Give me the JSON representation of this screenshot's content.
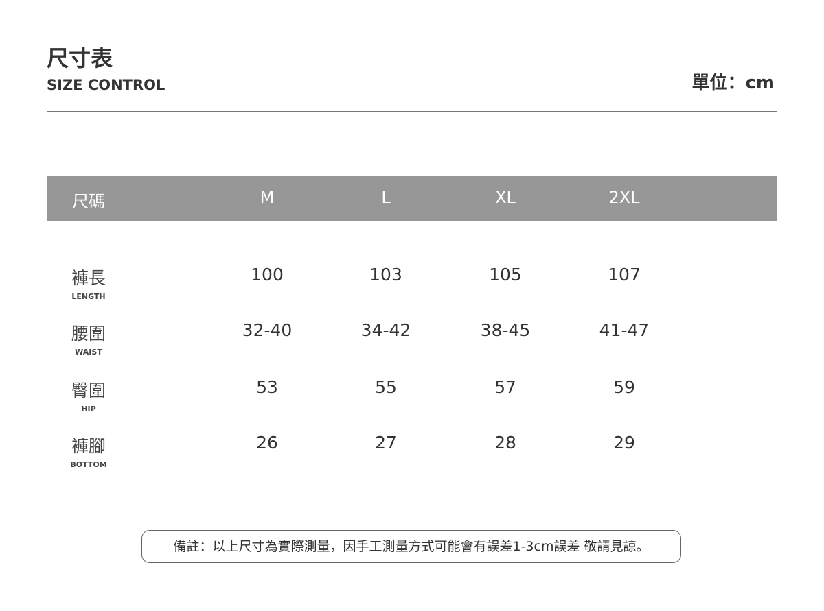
{
  "header": {
    "title": "尺寸表",
    "subtitle": "SIZE CONTROL",
    "unit": "單位：cm"
  },
  "table": {
    "corner": "尺碼",
    "sizes": [
      "M",
      "L",
      "XL",
      "2XL"
    ],
    "rows": [
      {
        "label": "褲長",
        "label_en": "LENGTH",
        "values": [
          "100",
          "103",
          "105",
          "107"
        ]
      },
      {
        "label": "腰圍",
        "label_en": "WAIST",
        "values": [
          "32-40",
          "34-42",
          "38-45",
          "41-47"
        ]
      },
      {
        "label": "臀圍",
        "label_en": "HIP",
        "values": [
          "53",
          "55",
          "57",
          "59"
        ]
      },
      {
        "label": "褲腳",
        "label_en": "BOTTOM",
        "values": [
          "26",
          "27",
          "28",
          "29"
        ]
      }
    ]
  },
  "note": "備註：以上尺寸為實際測量，因手工測量方式可能會有誤差1-3cm誤差 敬請見諒。"
}
